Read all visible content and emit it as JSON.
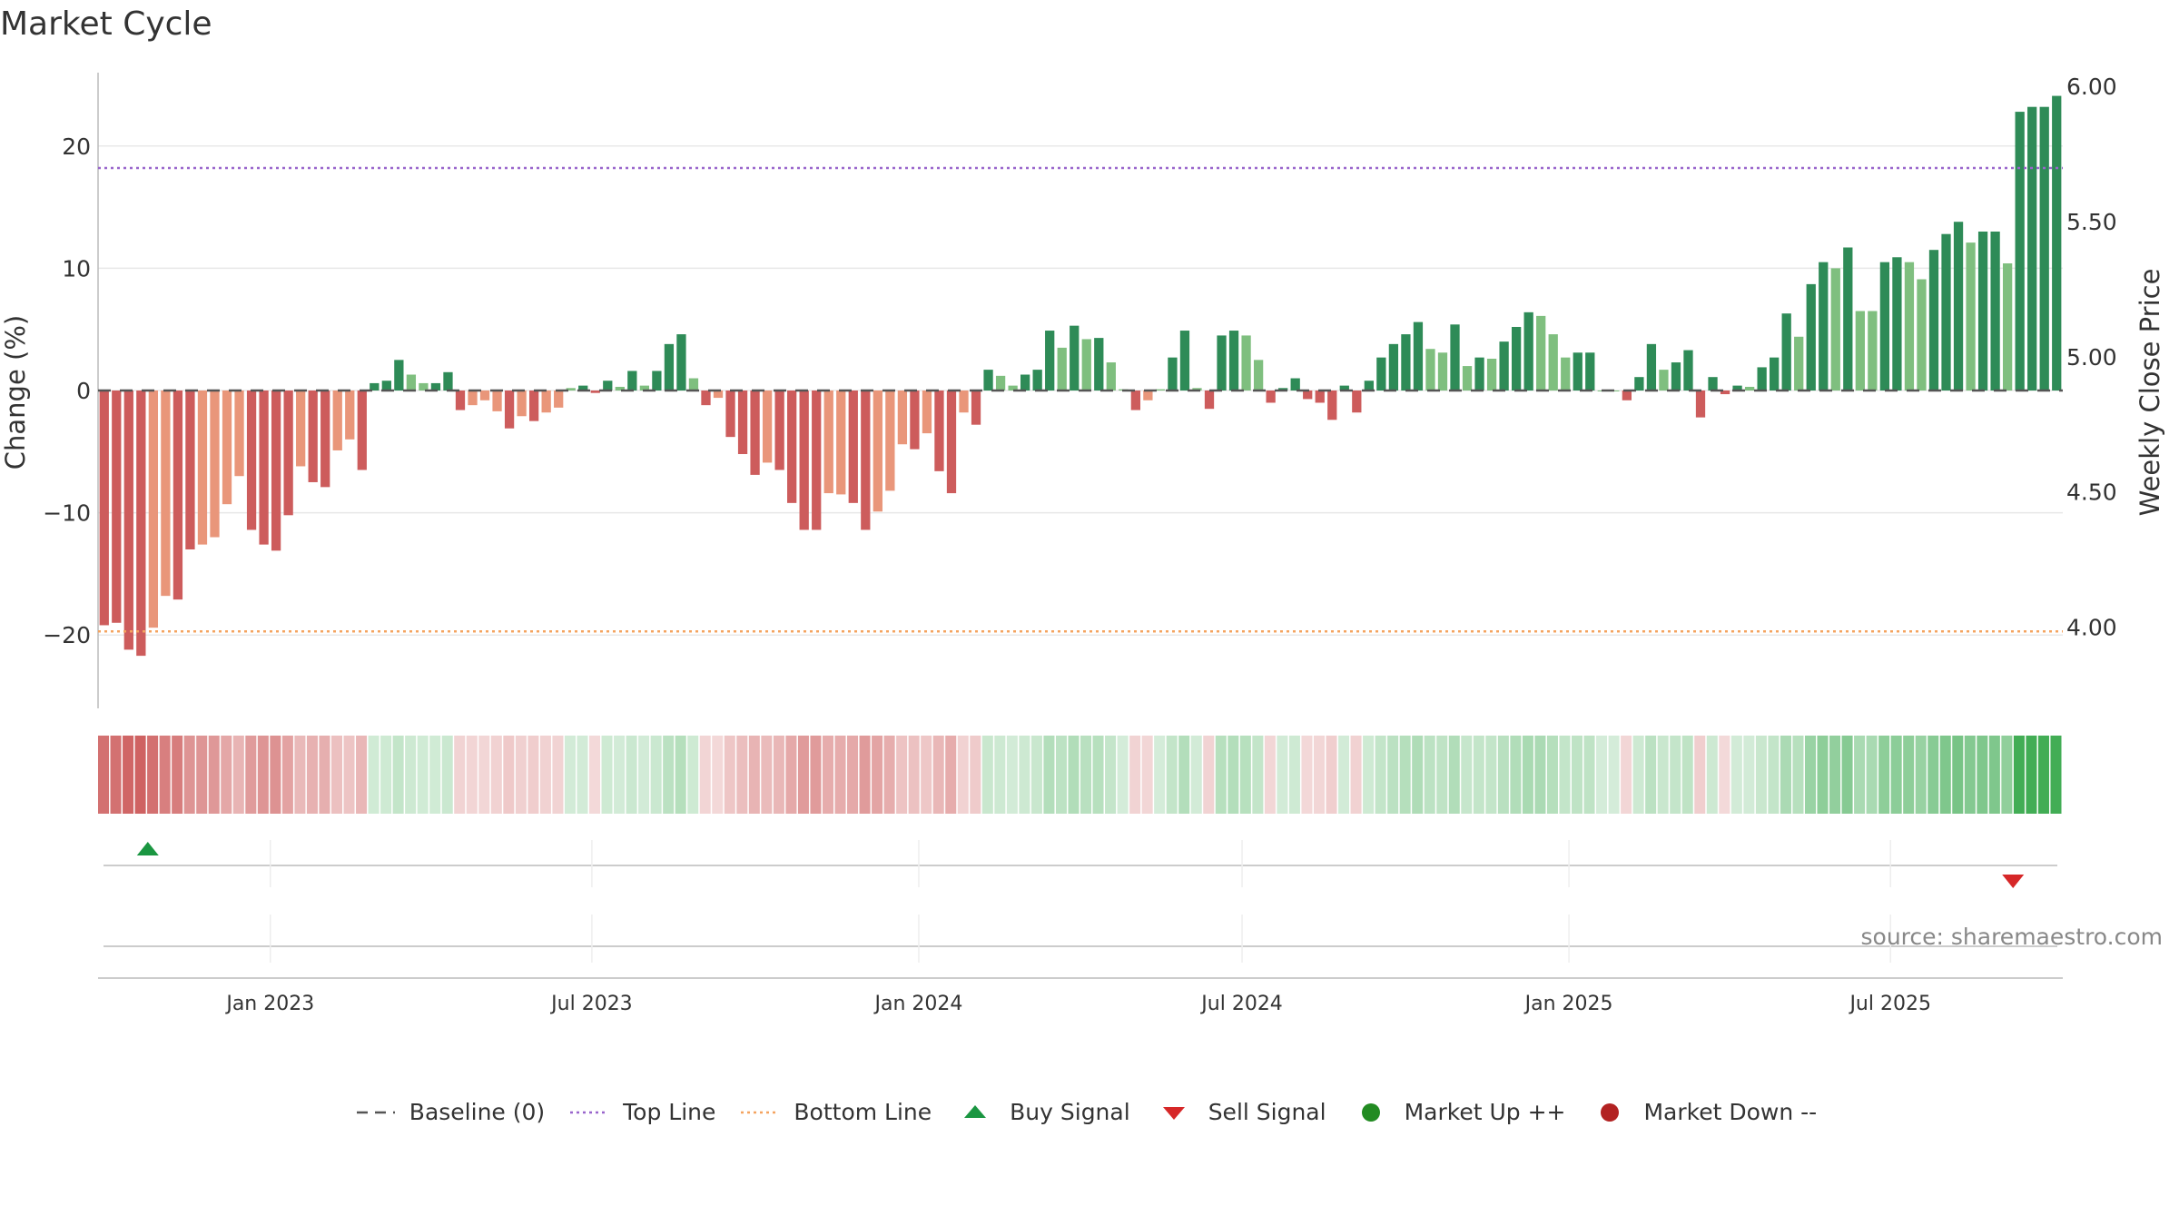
{
  "title": "Market Cycle",
  "source": "source: sharemaestro.com",
  "legend": {
    "baseline": "Baseline (0)",
    "top": "Top Line",
    "bottom": "Bottom Line",
    "buy": "Buy Signal",
    "sell": "Sell Signal",
    "up": "Market Up ++",
    "down": "Market Down --"
  },
  "colors": {
    "green_strong": "#2e8b57",
    "green_light": "#7fbf7f",
    "red_strong": "#cd5c5c",
    "red_light": "#e9967a",
    "top_line": "#9966cc",
    "bottom_line": "#f4a460",
    "buy": "#1a9641",
    "sell": "#d62728",
    "market_up": "#228b22",
    "market_down": "#b22222"
  },
  "chart_data": {
    "type": "bar",
    "ylabel": "Change (%)",
    "y2label": "Weekly Close Price",
    "ylim": [
      -26,
      26
    ],
    "y2lim": [
      3.7,
      6.05
    ],
    "yticks": [
      20,
      10,
      0,
      -10,
      -20
    ],
    "ytick_labels": [
      "20",
      "10",
      "0",
      "−10",
      "−20"
    ],
    "y2ticks": [
      6.0,
      5.5,
      5.0,
      4.5,
      4.0
    ],
    "y2tick_labels": [
      "6.00",
      "5.50",
      "5.00",
      "4.50",
      "4.00"
    ],
    "x_start": "2022-09-26",
    "x_end": "2025-10-06",
    "xticks": [
      {
        "date": "2023-01-01",
        "label": "Jan 2023"
      },
      {
        "date": "2023-07-01",
        "label": "Jul 2023"
      },
      {
        "date": "2024-01-01",
        "label": "Jan 2024"
      },
      {
        "date": "2024-07-01",
        "label": "Jul 2024"
      },
      {
        "date": "2025-01-01",
        "label": "Jan 2025"
      },
      {
        "date": "2025-07-01",
        "label": "Jul 2025"
      }
    ],
    "top_line": 18.2,
    "bottom_line": -19.7,
    "values": [
      -19.2,
      -19.0,
      -21.2,
      -21.7,
      -19.4,
      -16.8,
      -17.1,
      -13.0,
      -12.6,
      -12.0,
      -9.3,
      -7.0,
      -11.4,
      -12.6,
      -13.1,
      -10.2,
      -6.2,
      -7.5,
      -7.9,
      -4.9,
      -4.0,
      -6.5,
      0.6,
      0.8,
      2.5,
      1.3,
      0.6,
      0.6,
      1.5,
      -1.6,
      -1.2,
      -0.8,
      -1.7,
      -3.1,
      -2.1,
      -2.5,
      -1.8,
      -1.4,
      0.2,
      0.4,
      -0.2,
      0.8,
      0.3,
      1.6,
      0.4,
      1.6,
      3.8,
      4.6,
      1.0,
      -1.2,
      -0.6,
      -3.8,
      -5.2,
      -6.9,
      -5.9,
      -6.5,
      -9.2,
      -11.4,
      -11.4,
      -8.4,
      -8.5,
      -9.2,
      -11.4,
      -9.9,
      -8.2,
      -4.4,
      -4.8,
      -3.5,
      -6.6,
      -8.4,
      -1.8,
      -2.8,
      1.7,
      1.2,
      0.4,
      1.3,
      1.7,
      4.9,
      3.5,
      5.3,
      4.2,
      4.3,
      2.3,
      0.1,
      -1.6,
      -0.8,
      0.1,
      2.7,
      4.9,
      0.2,
      -1.5,
      4.5,
      4.9,
      4.5,
      2.5,
      -1.0,
      0.2,
      1.0,
      -0.7,
      -1.0,
      -2.4,
      0.4,
      -1.8,
      0.8,
      2.7,
      3.8,
      4.6,
      5.6,
      3.4,
      3.1,
      5.4,
      2.0,
      2.7,
      2.6,
      4.0,
      5.2,
      6.4,
      6.1,
      4.6,
      2.7,
      3.1,
      3.1,
      0.0,
      0.0,
      -0.8,
      1.1,
      3.8,
      1.7,
      2.3,
      3.3,
      -2.2,
      1.1,
      -0.3,
      0.4,
      0.3,
      1.9,
      2.7,
      6.3,
      4.4,
      8.7,
      10.5,
      10.0,
      11.7,
      6.5,
      6.5,
      10.5,
      10.9,
      10.5,
      9.1,
      11.5,
      12.8,
      13.8,
      12.1,
      13.0,
      13.0,
      10.4,
      22.8,
      23.2,
      23.2,
      24.1
    ],
    "bar_colors": [
      "red_strong",
      "red_strong",
      "red_strong",
      "red_strong",
      "red_light",
      "red_light",
      "red_strong",
      "red_strong",
      "red_light",
      "red_light",
      "red_light",
      "red_light",
      "red_strong",
      "red_strong",
      "red_strong",
      "red_strong",
      "red_light",
      "red_strong",
      "red_strong",
      "red_light",
      "red_light",
      "red_strong",
      "green_strong",
      "green_strong",
      "green_strong",
      "green_light",
      "green_light",
      "green_strong",
      "green_strong",
      "red_strong",
      "red_light",
      "red_light",
      "red_light",
      "red_strong",
      "red_light",
      "red_strong",
      "red_light",
      "red_light",
      "green_light",
      "green_strong",
      "red_strong",
      "green_strong",
      "green_light",
      "green_strong",
      "green_light",
      "green_strong",
      "green_strong",
      "green_strong",
      "green_light",
      "red_strong",
      "red_light",
      "red_strong",
      "red_strong",
      "red_strong",
      "red_light",
      "red_strong",
      "red_strong",
      "red_strong",
      "red_strong",
      "red_light",
      "red_light",
      "red_strong",
      "red_strong",
      "red_light",
      "red_light",
      "red_light",
      "red_strong",
      "red_light",
      "red_strong",
      "red_strong",
      "red_light",
      "red_strong",
      "green_strong",
      "green_light",
      "green_light",
      "green_strong",
      "green_strong",
      "green_strong",
      "green_light",
      "green_strong",
      "green_light",
      "green_strong",
      "green_light",
      "green_light",
      "red_strong",
      "red_light",
      "green_light",
      "green_strong",
      "green_strong",
      "green_light",
      "red_strong",
      "green_strong",
      "green_strong",
      "green_light",
      "green_light",
      "red_strong",
      "green_strong",
      "green_strong",
      "red_strong",
      "red_strong",
      "red_strong",
      "green_strong",
      "red_strong",
      "green_strong",
      "green_strong",
      "green_strong",
      "green_strong",
      "green_strong",
      "green_light",
      "green_light",
      "green_strong",
      "green_light",
      "green_strong",
      "green_light",
      "green_strong",
      "green_strong",
      "green_strong",
      "green_light",
      "green_light",
      "green_light",
      "green_strong",
      "green_strong",
      "green_light",
      "green_light",
      "red_strong",
      "green_strong",
      "green_strong",
      "green_light",
      "green_strong",
      "green_strong",
      "red_strong",
      "green_strong",
      "red_strong",
      "green_strong",
      "green_light",
      "green_strong",
      "green_strong",
      "green_strong",
      "green_light",
      "green_strong",
      "green_strong",
      "green_light",
      "green_strong",
      "green_light",
      "green_light",
      "green_strong",
      "green_strong",
      "green_light",
      "green_light",
      "green_strong",
      "green_strong",
      "green_strong",
      "green_light",
      "green_strong",
      "green_strong",
      "green_light",
      "green_strong",
      "green_strong",
      "green_strong",
      "green_strong"
    ],
    "signals": [
      {
        "type": "buy",
        "date": "2022-10-24"
      },
      {
        "type": "sell",
        "date": "2025-09-08"
      }
    ]
  }
}
